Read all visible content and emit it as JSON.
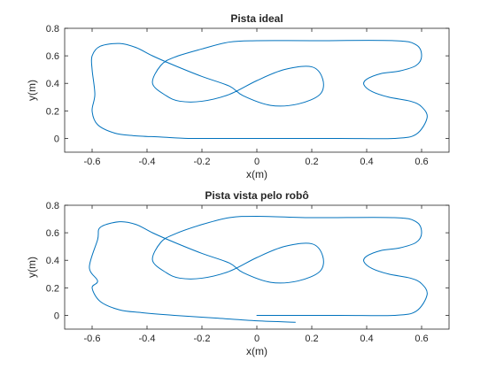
{
  "colors": {
    "series": "#0072BD",
    "axes": "#262626",
    "background": "#ffffff"
  },
  "chart_data": [
    {
      "type": "line",
      "title": "Pista ideal",
      "xlabel": "x(m)",
      "ylabel": "y(m)",
      "xlim": [
        -0.7,
        0.7
      ],
      "ylim": [
        -0.1,
        0.8
      ],
      "xticks": [
        "-0.6",
        "-0.4",
        "-0.2",
        "0",
        "0.2",
        "0.4",
        "0.6"
      ],
      "yticks": [
        "0",
        "0.2",
        "0.4",
        "0.6",
        "0.8"
      ],
      "grid": false,
      "series": [
        {
          "x": [
            0.0,
            0.3,
            0.5,
            0.58,
            0.62,
            0.6,
            0.56,
            0.48,
            0.42,
            0.39,
            0.4,
            0.45,
            0.52,
            0.58,
            0.6,
            0.58,
            0.5,
            0.2,
            0.0,
            -0.1,
            -0.2,
            -0.3,
            -0.35,
            -0.38,
            -0.33,
            -0.28,
            -0.2,
            -0.1,
            0.0,
            0.1,
            0.2,
            0.24,
            0.23,
            0.15,
            0.05,
            -0.05,
            -0.1,
            -0.2,
            -0.3,
            -0.38,
            -0.44,
            -0.5,
            -0.57,
            -0.6,
            -0.6,
            -0.59,
            -0.6,
            -0.58,
            -0.52,
            -0.45,
            -0.35,
            -0.25,
            -0.15,
            -0.05,
            0.0
          ],
          "y": [
            0.0,
            0.0,
            0.0,
            0.03,
            0.15,
            0.23,
            0.27,
            0.3,
            0.34,
            0.39,
            0.43,
            0.47,
            0.49,
            0.53,
            0.6,
            0.68,
            0.71,
            0.71,
            0.71,
            0.7,
            0.65,
            0.59,
            0.53,
            0.4,
            0.31,
            0.27,
            0.27,
            0.32,
            0.42,
            0.5,
            0.52,
            0.43,
            0.32,
            0.25,
            0.24,
            0.31,
            0.38,
            0.45,
            0.53,
            0.6,
            0.66,
            0.69,
            0.67,
            0.6,
            0.5,
            0.32,
            0.2,
            0.1,
            0.04,
            0.02,
            0.01,
            0.0,
            0.0,
            0.0,
            0.0
          ]
        }
      ]
    },
    {
      "type": "line",
      "title": "Pista vista pelo robô",
      "xlabel": "x(m)",
      "ylabel": "y(m)",
      "xlim": [
        -0.7,
        0.7
      ],
      "ylim": [
        -0.1,
        0.8
      ],
      "xticks": [
        "-0.6",
        "-0.4",
        "-0.2",
        "0",
        "0.2",
        "0.4",
        "0.6"
      ],
      "yticks": [
        "0",
        "0.2",
        "0.4",
        "0.6",
        "0.8"
      ],
      "grid": false,
      "series": [
        {
          "x": [
            0.0,
            0.3,
            0.5,
            0.58,
            0.62,
            0.6,
            0.56,
            0.48,
            0.42,
            0.39,
            0.4,
            0.45,
            0.52,
            0.58,
            0.6,
            0.58,
            0.5,
            0.2,
            0.0,
            -0.1,
            -0.2,
            -0.3,
            -0.35,
            -0.38,
            -0.33,
            -0.28,
            -0.2,
            -0.1,
            0.0,
            0.1,
            0.2,
            0.24,
            0.23,
            0.15,
            0.05,
            -0.05,
            -0.1,
            -0.2,
            -0.3,
            -0.38,
            -0.44,
            -0.5,
            -0.57,
            -0.58,
            -0.61,
            -0.58,
            -0.6,
            -0.57,
            -0.5,
            -0.42,
            -0.3,
            -0.15,
            0.0,
            0.14
          ],
          "y": [
            0.0,
            0.0,
            0.0,
            0.03,
            0.15,
            0.23,
            0.27,
            0.3,
            0.34,
            0.39,
            0.43,
            0.47,
            0.49,
            0.53,
            0.6,
            0.68,
            0.71,
            0.71,
            0.72,
            0.71,
            0.66,
            0.59,
            0.53,
            0.4,
            0.31,
            0.27,
            0.27,
            0.32,
            0.42,
            0.5,
            0.52,
            0.43,
            0.32,
            0.25,
            0.24,
            0.31,
            0.38,
            0.45,
            0.53,
            0.6,
            0.66,
            0.68,
            0.64,
            0.55,
            0.35,
            0.25,
            0.2,
            0.1,
            0.04,
            0.02,
            0.0,
            -0.02,
            -0.04,
            -0.05
          ]
        }
      ]
    }
  ]
}
